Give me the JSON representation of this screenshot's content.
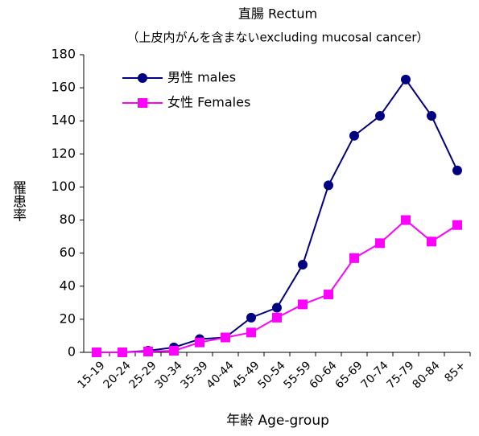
{
  "chart_data": {
    "type": "line",
    "title": "直腸 Rectum",
    "subtitle": "（上皮内がんを含まないexcluding mucosal cancer）",
    "x_label": "年齢 Age-group",
    "y_label": "罹患率",
    "categories": [
      "15-19",
      "20-24",
      "25-29",
      "30-34",
      "35-39",
      "40-44",
      "45-49",
      "50-54",
      "55-59",
      "60-64",
      "65-69",
      "70-74",
      "75-79",
      "80-84",
      "85+"
    ],
    "series": [
      {
        "name": "男性 males",
        "color": "#000080",
        "marker": "circle",
        "values": [
          0,
          0,
          1,
          3,
          8,
          9,
          21,
          27,
          53,
          101,
          131,
          143,
          165,
          143,
          110
        ]
      },
      {
        "name": "女性 Females",
        "color": "#ff00ff",
        "marker": "square",
        "values": [
          0,
          0,
          0.5,
          1,
          6,
          9,
          12,
          21,
          29,
          35,
          57,
          66,
          80,
          67,
          77
        ]
      }
    ],
    "ylim": [
      0,
      180
    ],
    "yticks": [
      0,
      20,
      40,
      60,
      80,
      100,
      120,
      140,
      160,
      180
    ],
    "legend": "upper left",
    "grid": false
  }
}
